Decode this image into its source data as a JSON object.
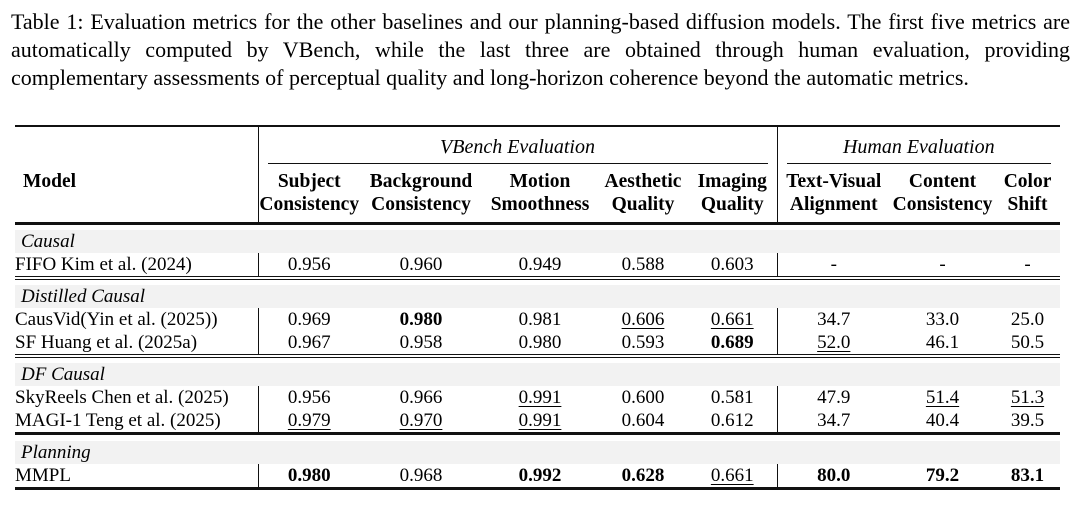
{
  "caption": "Table 1: Evaluation metrics for the other baselines and our planning-based diffusion models. The first five metrics are automatically computed by VBench, while the last three are obtained through human evaluation, providing complementary assessments of perceptual quality and long-horizon coherence beyond the automatic metrics.",
  "colors": {
    "section_row_background": "#f2f2f2",
    "rule_color": "#111111",
    "text_color": "#000000",
    "page_background": "#ffffff"
  },
  "table": {
    "model_header": "Model",
    "groups": [
      {
        "label": "VBench Evaluation",
        "span": 5
      },
      {
        "label": "Human Evaluation",
        "span": 3
      }
    ],
    "columns": [
      {
        "line1": "Subject",
        "line2": "Consistency"
      },
      {
        "line1": "Background",
        "line2": "Consistency"
      },
      {
        "line1": "Motion",
        "line2": "Smoothness"
      },
      {
        "line1": "Aesthetic",
        "line2": "Quality"
      },
      {
        "line1": "Imaging",
        "line2": "Quality"
      },
      {
        "line1": "Text-Visual",
        "line2": "Alignment"
      },
      {
        "line1": "Content",
        "line2": "Consistency"
      },
      {
        "line1": "Color",
        "line2": "Shift"
      }
    ],
    "sections": [
      {
        "label": "Causal",
        "rows": [
          {
            "model": "FIFO Kim et al. (2024)",
            "values": [
              {
                "text": "0.956"
              },
              {
                "text": "0.960"
              },
              {
                "text": "0.949"
              },
              {
                "text": "0.588"
              },
              {
                "text": "0.603"
              },
              {
                "text": "-"
              },
              {
                "text": "-"
              },
              {
                "text": "-"
              }
            ]
          }
        ]
      },
      {
        "label": "Distilled Causal",
        "rows": [
          {
            "model": "CausVid(Yin et al. (2025))",
            "values": [
              {
                "text": "0.969"
              },
              {
                "text": "0.980",
                "bold": true
              },
              {
                "text": "0.981"
              },
              {
                "text": "0.606",
                "underline": true
              },
              {
                "text": "0.661",
                "underline": true
              },
              {
                "text": "34.7"
              },
              {
                "text": "33.0"
              },
              {
                "text": "25.0"
              }
            ]
          },
          {
            "model": "SF Huang et al. (2025a)",
            "values": [
              {
                "text": "0.967"
              },
              {
                "text": "0.958"
              },
              {
                "text": "0.980"
              },
              {
                "text": "0.593"
              },
              {
                "text": "0.689",
                "bold": true
              },
              {
                "text": "52.0",
                "underline": true
              },
              {
                "text": "46.1"
              },
              {
                "text": "50.5"
              }
            ]
          }
        ]
      },
      {
        "label": "DF Causal",
        "rows": [
          {
            "model": "SkyReels Chen et al. (2025)",
            "values": [
              {
                "text": "0.956"
              },
              {
                "text": "0.966"
              },
              {
                "text": "0.991",
                "underline": true
              },
              {
                "text": "0.600"
              },
              {
                "text": "0.581"
              },
              {
                "text": "47.9"
              },
              {
                "text": "51.4",
                "underline": true
              },
              {
                "text": "51.3",
                "underline": true
              }
            ]
          },
          {
            "model": "MAGI-1 Teng et al. (2025)",
            "values": [
              {
                "text": "0.979",
                "underline": true
              },
              {
                "text": "0.970",
                "underline": true
              },
              {
                "text": "0.991",
                "underline": true
              },
              {
                "text": "0.604"
              },
              {
                "text": "0.612"
              },
              {
                "text": "34.7"
              },
              {
                "text": "40.4"
              },
              {
                "text": "39.5"
              }
            ]
          }
        ]
      },
      {
        "label": "Planning",
        "heavy_sep": true,
        "rows": [
          {
            "model": "MMPL",
            "values": [
              {
                "text": "0.980",
                "bold": true
              },
              {
                "text": "0.968"
              },
              {
                "text": "0.992",
                "bold": true
              },
              {
                "text": "0.628",
                "bold": true
              },
              {
                "text": "0.661",
                "underline": true
              },
              {
                "text": "80.0",
                "bold": true
              },
              {
                "text": "79.2",
                "bold": true
              },
              {
                "text": "83.1",
                "bold": true
              }
            ]
          }
        ]
      }
    ]
  }
}
